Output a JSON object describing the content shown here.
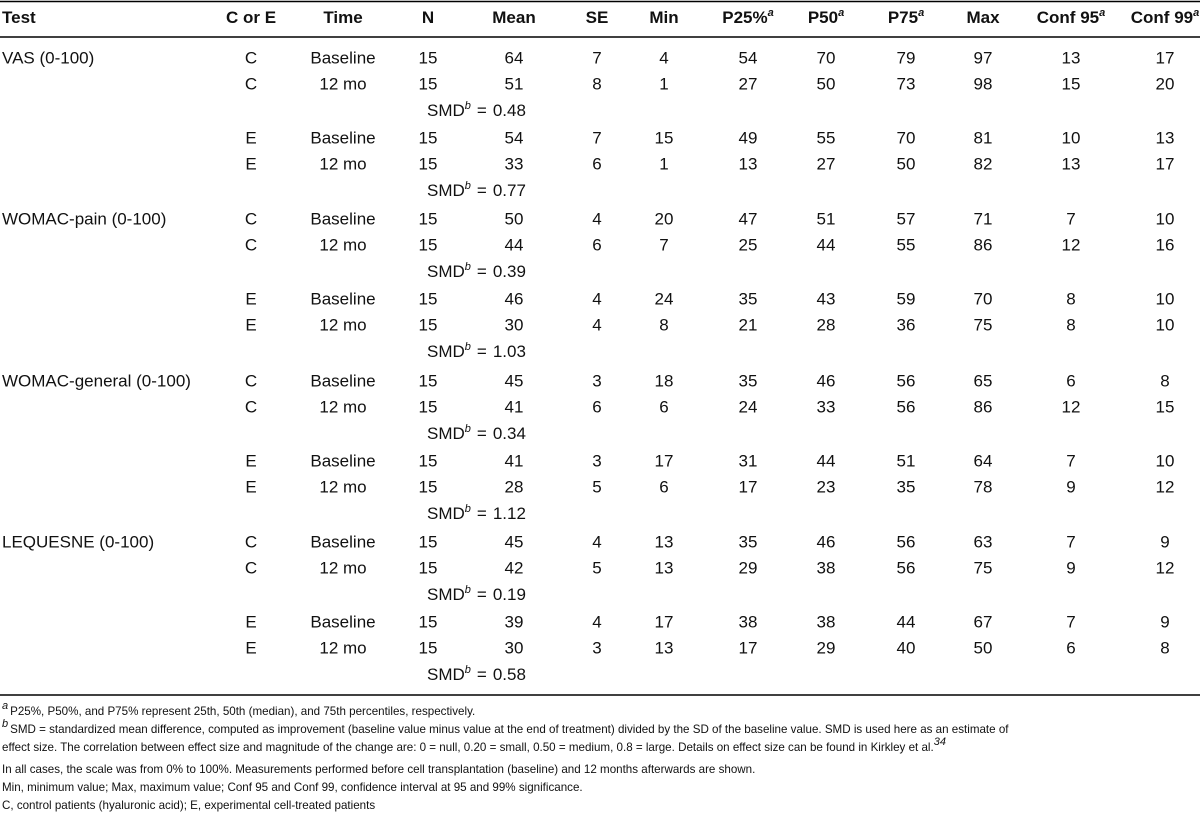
{
  "header": [
    {
      "text": "Test"
    },
    {
      "text": "C or E"
    },
    {
      "text": "Time"
    },
    {
      "text": "N"
    },
    {
      "text": "Mean"
    },
    {
      "text": "SE"
    },
    {
      "text": "Min"
    },
    {
      "text": "P25%",
      "note": "a"
    },
    {
      "text": "P50",
      "note": "a"
    },
    {
      "text": "P75",
      "note": "a"
    },
    {
      "text": "Max"
    },
    {
      "text": "Conf 95",
      "note": "a"
    },
    {
      "text": "Conf 99",
      "note": "a"
    }
  ],
  "groups": [
    {
      "test": "VAS (0-100)",
      "arms": [
        {
          "rows": [
            [
              "C",
              "Baseline",
              15,
              64,
              7,
              4,
              54,
              70,
              79,
              97,
              13,
              17
            ],
            [
              "C",
              "12 mo",
              15,
              51,
              8,
              1,
              27,
              50,
              73,
              98,
              15,
              20
            ]
          ],
          "smd": {
            "label": "SMD",
            "note": "b",
            "relation": "=",
            "value": 0.48
          }
        },
        {
          "rows": [
            [
              "E",
              "Baseline",
              15,
              54,
              7,
              15,
              49,
              55,
              70,
              81,
              10,
              13
            ],
            [
              "E",
              "12 mo",
              15,
              33,
              6,
              1,
              13,
              27,
              50,
              82,
              13,
              17
            ]
          ],
          "smd": {
            "label": "SMD",
            "note": "b",
            "relation": "=",
            "value": 0.77
          }
        }
      ]
    },
    {
      "test": "WOMAC-pain (0-100)",
      "arms": [
        {
          "rows": [
            [
              "C",
              "Baseline",
              15,
              50,
              4,
              20,
              47,
              51,
              57,
              71,
              7,
              10
            ],
            [
              "C",
              "12 mo",
              15,
              44,
              6,
              7,
              25,
              44,
              55,
              86,
              12,
              16
            ]
          ],
          "smd": {
            "label": "SMD",
            "note": "b",
            "relation": "=",
            "value": 0.39
          }
        },
        {
          "rows": [
            [
              "E",
              "Baseline",
              15,
              46,
              4,
              24,
              35,
              43,
              59,
              70,
              8,
              10
            ],
            [
              "E",
              "12 mo",
              15,
              30,
              4,
              8,
              21,
              28,
              36,
              75,
              8,
              10
            ]
          ],
          "smd": {
            "label": "SMD",
            "note": "b",
            "relation": "=",
            "value": 1.03
          }
        }
      ]
    },
    {
      "test": "WOMAC-general (0-100)",
      "arms": [
        {
          "rows": [
            [
              "C",
              "Baseline",
              15,
              45,
              3,
              18,
              35,
              46,
              56,
              65,
              6,
              8
            ],
            [
              "C",
              "12 mo",
              15,
              41,
              6,
              6,
              24,
              33,
              56,
              86,
              12,
              15
            ]
          ],
          "smd": {
            "label": "SMD",
            "note": "b",
            "relation": "=",
            "value": 0.34
          }
        },
        {
          "rows": [
            [
              "E",
              "Baseline",
              15,
              41,
              3,
              17,
              31,
              44,
              51,
              64,
              7,
              10
            ],
            [
              "E",
              "12 mo",
              15,
              28,
              5,
              6,
              17,
              23,
              35,
              78,
              9,
              12
            ]
          ],
          "smd": {
            "label": "SMD",
            "note": "b",
            "relation": "=",
            "value": 1.12
          }
        }
      ]
    },
    {
      "test": "LEQUESNE (0-100)",
      "arms": [
        {
          "rows": [
            [
              "C",
              "Baseline",
              15,
              45,
              4,
              13,
              35,
              46,
              56,
              63,
              7,
              9
            ],
            [
              "C",
              "12 mo",
              15,
              42,
              5,
              13,
              29,
              38,
              56,
              75,
              9,
              12
            ]
          ],
          "smd": {
            "label": "SMD",
            "note": "b",
            "relation": "=",
            "value": 0.19
          }
        },
        {
          "rows": [
            [
              "E",
              "Baseline",
              15,
              39,
              4,
              17,
              38,
              38,
              44,
              67,
              7,
              9
            ],
            [
              "E",
              "12 mo",
              15,
              30,
              3,
              13,
              17,
              29,
              40,
              50,
              6,
              8
            ]
          ],
          "smd": {
            "label": "SMD",
            "note": "b",
            "relation": "=",
            "value": 0.58
          }
        }
      ]
    }
  ],
  "footnotes": {
    "a": {
      "mark": "a",
      "text": "P25%, P50%, and P75% represent 25th, 50th (median), and 75th percentiles, respectively."
    },
    "b": {
      "mark": "b",
      "lines": [
        "SMD = standardized mean difference, computed as improvement (baseline value minus value at the end of treatment) divided by the SD of the baseline value. SMD is used here as an estimate of",
        "effect size. The correlation between effect size and magnitude of the change are: 0 = null, 0.20 = small, 0.50 = medium, 0.8 = large. Details on effect size can be found in Kirkley et al."
      ],
      "ref": "34"
    },
    "notes": [
      "In all cases, the scale was from 0% to 100%. Measurements performed before cell transplantation (baseline) and 12 months afterwards are shown.",
      "Min, minimum value; Max, maximum value; Conf 95 and Conf 99, confidence interval at 95 and 99% significance.",
      "C, control patients (hyaluronic acid); E, experimental cell-treated patients"
    ]
  }
}
